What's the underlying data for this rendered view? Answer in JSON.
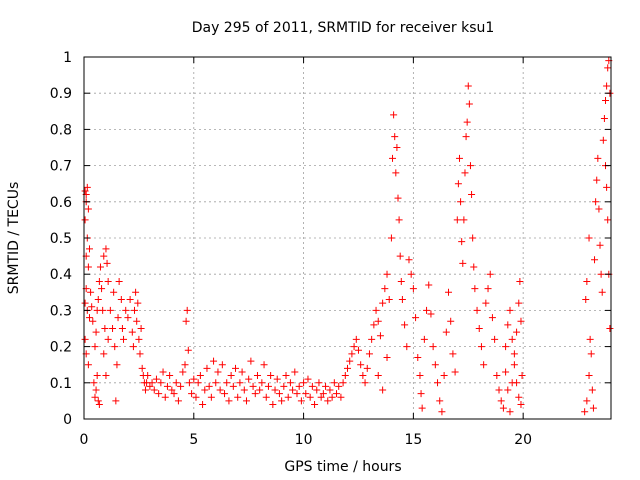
{
  "chart_data": {
    "type": "scatter",
    "title": "Day 295 of 2011, SRMTID for receiver ksu1",
    "xlabel": "GPS time / hours",
    "ylabel": "SRMTID / TECUs",
    "xlim": [
      0,
      24
    ],
    "ylim": [
      0,
      1
    ],
    "xticks": [
      0,
      5,
      10,
      15,
      20
    ],
    "xtick_labels": [
      "0",
      "5",
      "10",
      "15",
      "20"
    ],
    "yticks": [
      0,
      0.1,
      0.2,
      0.3,
      0.4,
      0.5,
      0.6,
      0.7,
      0.8,
      0.9,
      1
    ],
    "ytick_labels": [
      "0",
      "0.1",
      "0.2",
      "0.3",
      "0.4",
      "0.5",
      "0.6",
      "0.7",
      "0.8",
      "0.9",
      "1"
    ],
    "grid": true,
    "marker": "+",
    "color": "#ff0000",
    "series": [
      {
        "name": "SRMTID",
        "points": [
          [
            0.05,
            0.63
          ],
          [
            0.1,
            0.62
          ],
          [
            0.15,
            0.64
          ],
          [
            0.1,
            0.6
          ],
          [
            0.2,
            0.58
          ],
          [
            0.05,
            0.55
          ],
          [
            0.15,
            0.5
          ],
          [
            0.25,
            0.47
          ],
          [
            0.1,
            0.45
          ],
          [
            0.2,
            0.42
          ],
          [
            0.1,
            0.36
          ],
          [
            0.05,
            0.32
          ],
          [
            0.15,
            0.3
          ],
          [
            0.25,
            0.28
          ],
          [
            0.05,
            0.22
          ],
          [
            0.1,
            0.18
          ],
          [
            0.2,
            0.15
          ],
          [
            0.3,
            0.35
          ],
          [
            0.35,
            0.31
          ],
          [
            0.4,
            0.27
          ],
          [
            0.45,
            0.1
          ],
          [
            0.5,
            0.06
          ],
          [
            0.55,
            0.08
          ],
          [
            0.6,
            0.12
          ],
          [
            0.65,
            0.05
          ],
          [
            0.7,
            0.04
          ],
          [
            0.5,
            0.2
          ],
          [
            0.55,
            0.24
          ],
          [
            0.6,
            0.3
          ],
          [
            0.65,
            0.33
          ],
          [
            0.7,
            0.38
          ],
          [
            0.75,
            0.42
          ],
          [
            0.8,
            0.36
          ],
          [
            0.85,
            0.3
          ],
          [
            0.9,
            0.45
          ],
          [
            1.0,
            0.47
          ],
          [
            1.05,
            0.43
          ],
          [
            1.1,
            0.38
          ],
          [
            0.95,
            0.25
          ],
          [
            0.9,
            0.18
          ],
          [
            1.0,
            0.12
          ],
          [
            1.1,
            0.22
          ],
          [
            1.2,
            0.3
          ],
          [
            1.3,
            0.25
          ],
          [
            1.35,
            0.35
          ],
          [
            1.4,
            0.2
          ],
          [
            1.5,
            0.15
          ],
          [
            1.45,
            0.05
          ],
          [
            1.55,
            0.28
          ],
          [
            1.6,
            0.38
          ],
          [
            1.7,
            0.33
          ],
          [
            1.75,
            0.25
          ],
          [
            1.8,
            0.22
          ],
          [
            1.9,
            0.3
          ],
          [
            2.0,
            0.28
          ],
          [
            2.1,
            0.33
          ],
          [
            2.2,
            0.24
          ],
          [
            2.3,
            0.3
          ],
          [
            2.35,
            0.35
          ],
          [
            2.25,
            0.2
          ],
          [
            2.4,
            0.27
          ],
          [
            2.45,
            0.32
          ],
          [
            2.5,
            0.22
          ],
          [
            2.55,
            0.18
          ],
          [
            2.6,
            0.25
          ],
          [
            2.65,
            0.14
          ],
          [
            2.7,
            0.12
          ],
          [
            2.75,
            0.1
          ],
          [
            2.8,
            0.08
          ],
          [
            2.85,
            0.1
          ],
          [
            2.9,
            0.12
          ],
          [
            3.0,
            0.09
          ],
          [
            3.1,
            0.1
          ],
          [
            3.2,
            0.08
          ],
          [
            3.3,
            0.11
          ],
          [
            3.4,
            0.07
          ],
          [
            3.5,
            0.1
          ],
          [
            3.6,
            0.13
          ],
          [
            3.7,
            0.06
          ],
          [
            3.8,
            0.09
          ],
          [
            3.9,
            0.12
          ],
          [
            4.0,
            0.08
          ],
          [
            4.1,
            0.07
          ],
          [
            4.2,
            0.1
          ],
          [
            4.3,
            0.05
          ],
          [
            4.4,
            0.09
          ],
          [
            4.5,
            0.13
          ],
          [
            4.6,
            0.15
          ],
          [
            4.65,
            0.27
          ],
          [
            4.7,
            0.3
          ],
          [
            4.75,
            0.19
          ],
          [
            4.8,
            0.1
          ],
          [
            4.9,
            0.07
          ],
          [
            5.0,
            0.11
          ],
          [
            5.1,
            0.06
          ],
          [
            5.2,
            0.1
          ],
          [
            5.3,
            0.12
          ],
          [
            5.4,
            0.04
          ],
          [
            5.5,
            0.08
          ],
          [
            5.6,
            0.14
          ],
          [
            5.7,
            0.09
          ],
          [
            5.8,
            0.06
          ],
          [
            5.9,
            0.16
          ],
          [
            6.0,
            0.1
          ],
          [
            6.1,
            0.13
          ],
          [
            6.2,
            0.08
          ],
          [
            6.3,
            0.15
          ],
          [
            6.4,
            0.07
          ],
          [
            6.5,
            0.1
          ],
          [
            6.6,
            0.05
          ],
          [
            6.7,
            0.12
          ],
          [
            6.8,
            0.09
          ],
          [
            6.9,
            0.14
          ],
          [
            7.0,
            0.06
          ],
          [
            7.1,
            0.1
          ],
          [
            7.2,
            0.13
          ],
          [
            7.3,
            0.08
          ],
          [
            7.4,
            0.05
          ],
          [
            7.5,
            0.11
          ],
          [
            7.6,
            0.16
          ],
          [
            7.7,
            0.09
          ],
          [
            7.8,
            0.07
          ],
          [
            7.9,
            0.12
          ],
          [
            8.0,
            0.08
          ],
          [
            8.1,
            0.1
          ],
          [
            8.2,
            0.15
          ],
          [
            8.3,
            0.06
          ],
          [
            8.4,
            0.09
          ],
          [
            8.5,
            0.12
          ],
          [
            8.6,
            0.04
          ],
          [
            8.7,
            0.08
          ],
          [
            8.8,
            0.11
          ],
          [
            8.9,
            0.07
          ],
          [
            9.0,
            0.05
          ],
          [
            9.1,
            0.09
          ],
          [
            9.2,
            0.12
          ],
          [
            9.3,
            0.06
          ],
          [
            9.4,
            0.1
          ],
          [
            9.5,
            0.08
          ],
          [
            9.6,
            0.13
          ],
          [
            9.7,
            0.07
          ],
          [
            9.8,
            0.09
          ],
          [
            9.9,
            0.05
          ],
          [
            10.0,
            0.1
          ],
          [
            10.1,
            0.07
          ],
          [
            10.2,
            0.11
          ],
          [
            10.3,
            0.06
          ],
          [
            10.4,
            0.09
          ],
          [
            10.5,
            0.04
          ],
          [
            10.6,
            0.08
          ],
          [
            10.7,
            0.1
          ],
          [
            10.8,
            0.06
          ],
          [
            10.9,
            0.07
          ],
          [
            11.0,
            0.09
          ],
          [
            11.1,
            0.05
          ],
          [
            11.2,
            0.08
          ],
          [
            11.3,
            0.06
          ],
          [
            11.4,
            0.1
          ],
          [
            11.5,
            0.07
          ],
          [
            11.6,
            0.09
          ],
          [
            11.7,
            0.06
          ],
          [
            11.8,
            0.1
          ],
          [
            11.9,
            0.12
          ],
          [
            12.0,
            0.14
          ],
          [
            12.1,
            0.16
          ],
          [
            12.2,
            0.18
          ],
          [
            12.3,
            0.2
          ],
          [
            12.4,
            0.22
          ],
          [
            12.5,
            0.19
          ],
          [
            12.6,
            0.15
          ],
          [
            12.7,
            0.12
          ],
          [
            12.8,
            0.1
          ],
          [
            12.9,
            0.14
          ],
          [
            13.0,
            0.18
          ],
          [
            13.1,
            0.22
          ],
          [
            13.2,
            0.26
          ],
          [
            13.3,
            0.3
          ],
          [
            13.4,
            0.27
          ],
          [
            13.5,
            0.23
          ],
          [
            13.6,
            0.32
          ],
          [
            13.7,
            0.36
          ],
          [
            13.8,
            0.4
          ],
          [
            13.9,
            0.33
          ],
          [
            13.4,
            0.12
          ],
          [
            13.6,
            0.08
          ],
          [
            13.8,
            0.17
          ],
          [
            14.0,
            0.5
          ],
          [
            14.05,
            0.72
          ],
          [
            14.1,
            0.84
          ],
          [
            14.15,
            0.78
          ],
          [
            14.2,
            0.68
          ],
          [
            14.25,
            0.75
          ],
          [
            14.3,
            0.61
          ],
          [
            14.35,
            0.55
          ],
          [
            14.4,
            0.45
          ],
          [
            14.45,
            0.38
          ],
          [
            14.5,
            0.33
          ],
          [
            14.6,
            0.26
          ],
          [
            14.7,
            0.2
          ],
          [
            14.8,
            0.44
          ],
          [
            14.9,
            0.4
          ],
          [
            15.0,
            0.36
          ],
          [
            15.1,
            0.28
          ],
          [
            15.2,
            0.17
          ],
          [
            15.3,
            0.12
          ],
          [
            15.35,
            0.07
          ],
          [
            15.4,
            0.03
          ],
          [
            15.5,
            0.22
          ],
          [
            15.6,
            0.3
          ],
          [
            15.7,
            0.37
          ],
          [
            15.8,
            0.29
          ],
          [
            15.9,
            0.2
          ],
          [
            16.0,
            0.15
          ],
          [
            16.1,
            0.1
          ],
          [
            16.2,
            0.05
          ],
          [
            16.3,
            0.02
          ],
          [
            16.4,
            0.12
          ],
          [
            16.5,
            0.24
          ],
          [
            16.6,
            0.35
          ],
          [
            16.7,
            0.27
          ],
          [
            16.8,
            0.18
          ],
          [
            16.9,
            0.13
          ],
          [
            17.0,
            0.55
          ],
          [
            17.05,
            0.65
          ],
          [
            17.1,
            0.72
          ],
          [
            17.15,
            0.6
          ],
          [
            17.2,
            0.49
          ],
          [
            17.25,
            0.43
          ],
          [
            17.3,
            0.55
          ],
          [
            17.35,
            0.68
          ],
          [
            17.4,
            0.78
          ],
          [
            17.45,
            0.82
          ],
          [
            17.5,
            0.92
          ],
          [
            17.55,
            0.87
          ],
          [
            17.6,
            0.7
          ],
          [
            17.65,
            0.62
          ],
          [
            17.7,
            0.5
          ],
          [
            17.75,
            0.42
          ],
          [
            17.8,
            0.36
          ],
          [
            17.9,
            0.3
          ],
          [
            18.0,
            0.25
          ],
          [
            18.1,
            0.2
          ],
          [
            18.2,
            0.15
          ],
          [
            18.3,
            0.32
          ],
          [
            18.4,
            0.36
          ],
          [
            18.5,
            0.4
          ],
          [
            18.6,
            0.28
          ],
          [
            18.7,
            0.22
          ],
          [
            18.8,
            0.12
          ],
          [
            18.9,
            0.08
          ],
          [
            19.0,
            0.05
          ],
          [
            19.1,
            0.03
          ],
          [
            19.2,
            0.2
          ],
          [
            19.3,
            0.26
          ],
          [
            19.4,
            0.3
          ],
          [
            19.5,
            0.22
          ],
          [
            19.6,
            0.15
          ],
          [
            19.7,
            0.1
          ],
          [
            19.8,
            0.06
          ],
          [
            19.9,
            0.04
          ],
          [
            19.2,
            0.13
          ],
          [
            19.3,
            0.08
          ],
          [
            19.4,
            0.02
          ],
          [
            19.5,
            0.1
          ],
          [
            19.6,
            0.18
          ],
          [
            19.7,
            0.24
          ],
          [
            19.8,
            0.32
          ],
          [
            19.85,
            0.38
          ],
          [
            19.9,
            0.27
          ],
          [
            19.95,
            0.12
          ],
          [
            22.8,
            0.02
          ],
          [
            22.9,
            0.05
          ],
          [
            23.0,
            0.12
          ],
          [
            22.85,
            0.33
          ],
          [
            22.9,
            0.38
          ],
          [
            23.0,
            0.5
          ],
          [
            23.05,
            0.22
          ],
          [
            23.1,
            0.18
          ],
          [
            23.15,
            0.08
          ],
          [
            23.2,
            0.03
          ],
          [
            23.25,
            0.44
          ],
          [
            23.3,
            0.6
          ],
          [
            23.35,
            0.66
          ],
          [
            23.4,
            0.72
          ],
          [
            23.45,
            0.58
          ],
          [
            23.5,
            0.48
          ],
          [
            23.55,
            0.4
          ],
          [
            23.6,
            0.35
          ],
          [
            23.65,
            0.77
          ],
          [
            23.7,
            0.83
          ],
          [
            23.75,
            0.88
          ],
          [
            23.8,
            0.92
          ],
          [
            23.85,
            0.97
          ],
          [
            23.9,
            0.99
          ],
          [
            23.75,
            0.7
          ],
          [
            23.8,
            0.64
          ],
          [
            23.85,
            0.55
          ],
          [
            23.9,
            0.4
          ],
          [
            23.95,
            0.25
          ],
          [
            23.95,
            0.9
          ]
        ]
      }
    ]
  }
}
